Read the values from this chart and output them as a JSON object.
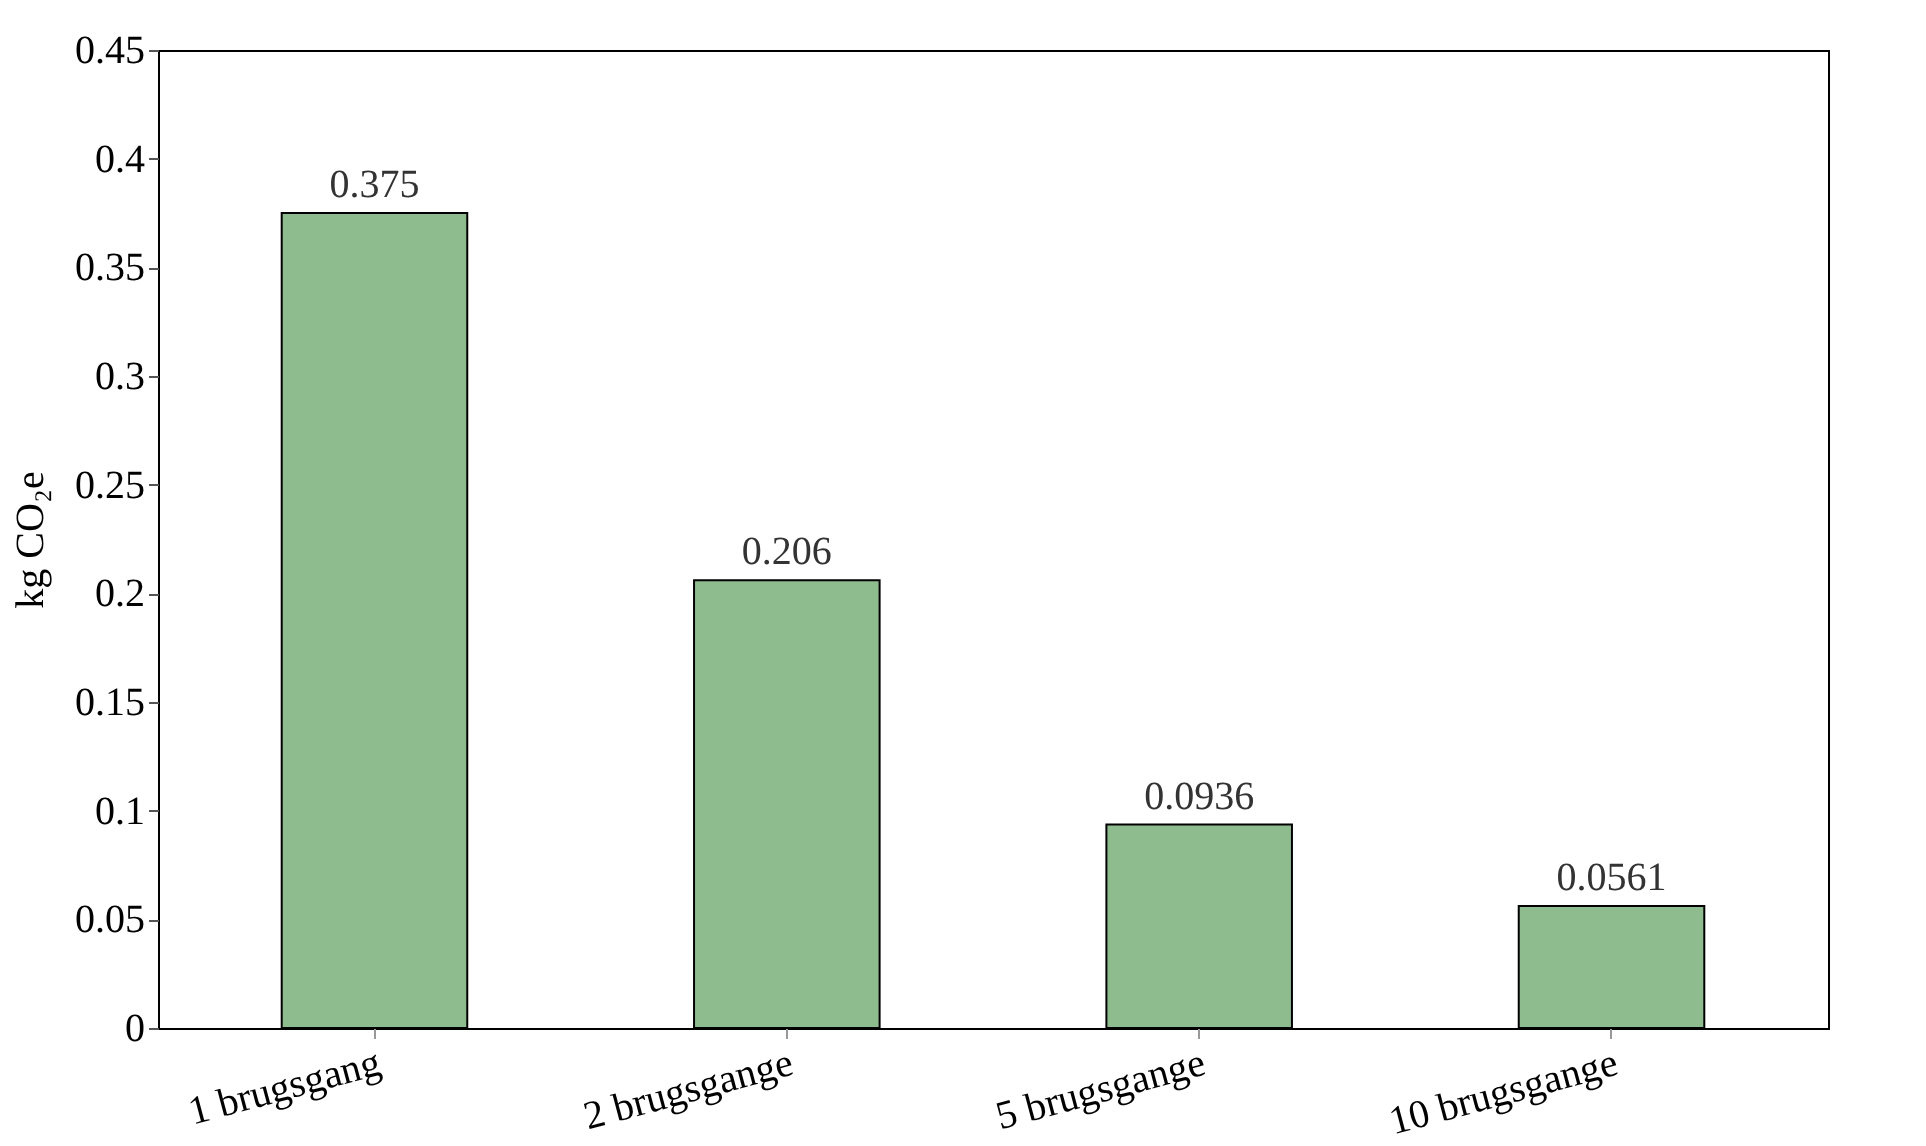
{
  "chart_data": {
    "type": "bar",
    "ylabel": "kg CO₂e",
    "categories": [
      "1 brugsgang",
      "2 brugsgange",
      "5 brugsgange",
      "10 brugsgange"
    ],
    "values": [
      0.375,
      0.206,
      0.0936,
      0.0561
    ],
    "color": "#8fbc8f",
    "ylim": [
      0,
      0.45
    ],
    "yticks": [
      0,
      0.05,
      0.1,
      0.15,
      0.2,
      0.25,
      0.3,
      0.35,
      0.4,
      0.45
    ],
    "data_labels": true,
    "grid": false
  }
}
